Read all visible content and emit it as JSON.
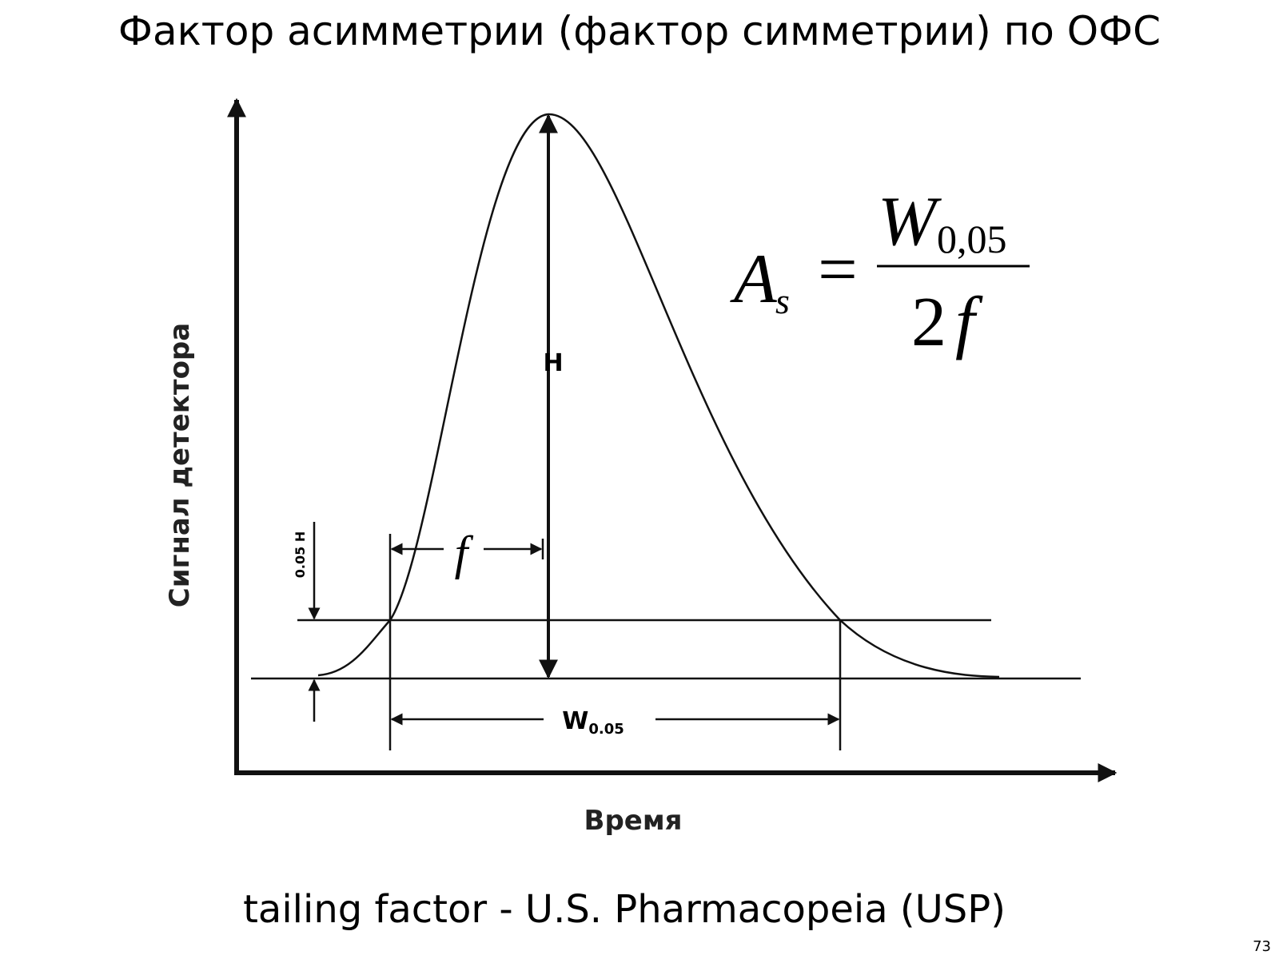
{
  "title": "Фактор асимметрии (фактор симметрии) по ОФС",
  "diagram": {
    "y_axis_label": "Сигнал детектора",
    "x_axis_label": "Время",
    "height_label": "H",
    "fraction_label": "0.05 H",
    "f_label": "f",
    "width_label": {
      "main": "W",
      "sub": "0.05"
    }
  },
  "formula": {
    "lhs": "A",
    "lhs_sub": "s",
    "equals": "=",
    "numerator": "W",
    "numerator_sub": "0,05",
    "denominator_number": "2",
    "denominator_var": "f"
  },
  "caption": "tailing factor - U.S. Pharmacopeia (USP)",
  "page_number": "73"
}
